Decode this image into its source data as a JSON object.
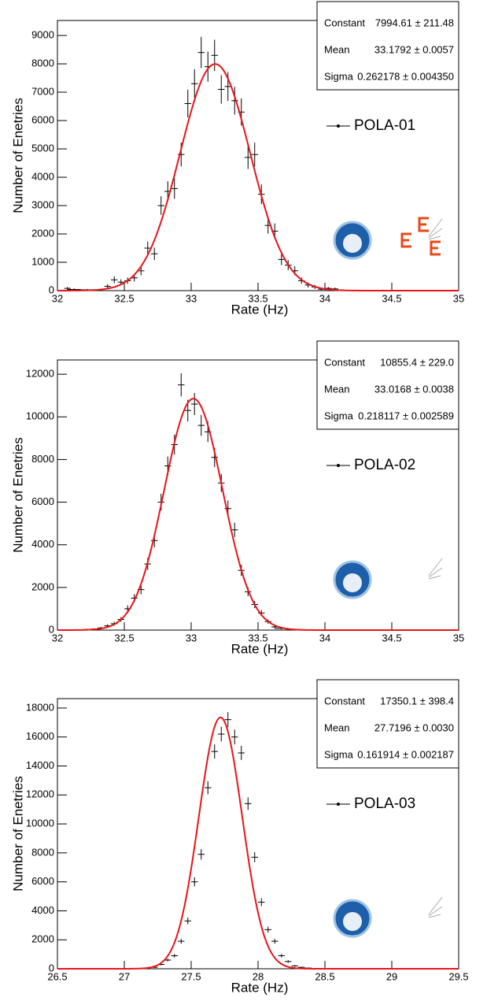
{
  "chart_data": [
    {
      "type": "scatter",
      "x_label": "Rate (Hz)",
      "y_label": "Number of Enetries",
      "xlim": [
        32,
        35
      ],
      "xticks": [
        32,
        32.5,
        33,
        33.5,
        34,
        34.5,
        35
      ],
      "ylim": [
        0,
        9530
      ],
      "yticks": [
        0,
        1000,
        2000,
        3000,
        4000,
        5000,
        6000,
        7000,
        8000,
        9000
      ],
      "series": [
        {
          "name": "POLA-01",
          "color": "#000000",
          "x": [
            32.075,
            32.125,
            32.225,
            32.375,
            32.425,
            32.475,
            32.525,
            32.575,
            32.625,
            32.675,
            32.725,
            32.775,
            32.825,
            32.875,
            32.925,
            32.975,
            33.025,
            33.075,
            33.125,
            33.175,
            33.225,
            33.275,
            33.325,
            33.375,
            33.425,
            33.475,
            33.525,
            33.575,
            33.625,
            33.675,
            33.725,
            33.775,
            33.825,
            33.875,
            33.925,
            33.975,
            34.025,
            34.075,
            34.125
          ],
          "values": [
            80,
            40,
            30,
            150,
            380,
            300,
            350,
            450,
            700,
            1500,
            1300,
            3000,
            3500,
            3600,
            4800,
            6600,
            7300,
            8400,
            7900,
            8300,
            7100,
            7200,
            6700,
            6300,
            4700,
            4800,
            3400,
            2300,
            2100,
            1100,
            900,
            700,
            350,
            200,
            130,
            50,
            80,
            60,
            20
          ],
          "errors": [
            50,
            40,
            30,
            80,
            120,
            100,
            110,
            130,
            160,
            230,
            220,
            330,
            360,
            360,
            420,
            490,
            510,
            550,
            530,
            550,
            500,
            510,
            490,
            480,
            410,
            420,
            350,
            290,
            270,
            200,
            180,
            160,
            110,
            90,
            70,
            40,
            50,
            50,
            30
          ]
        }
      ],
      "fit_color": "#e8141a",
      "stats": [
        {
          "name": "Constant",
          "label": "7994.61 ± 211.48",
          "value": 7994.61
        },
        {
          "name": "Mean",
          "label": "33.1792 ± 0.0057",
          "value": 33.1792
        },
        {
          "name": "Sigma",
          "label": "0.262178 ± 0.004350",
          "value": 0.262178
        }
      ]
    },
    {
      "type": "scatter",
      "x_label": "Rate (Hz)",
      "y_label": "Number of Enetries",
      "xlim": [
        32,
        35
      ],
      "xticks": [
        32,
        32.5,
        33,
        33.5,
        34,
        34.5,
        35
      ],
      "ylim": [
        0,
        12670
      ],
      "yticks": [
        0,
        2000,
        4000,
        6000,
        8000,
        10000,
        12000
      ],
      "series": [
        {
          "name": "POLA-02",
          "color": "#000000",
          "x": [
            32.225,
            32.275,
            32.325,
            32.375,
            32.425,
            32.475,
            32.525,
            32.575,
            32.625,
            32.675,
            32.725,
            32.775,
            32.825,
            32.875,
            32.925,
            32.975,
            33.025,
            33.075,
            33.125,
            33.175,
            33.225,
            33.275,
            33.325,
            33.375,
            33.425,
            33.475,
            33.525,
            33.575,
            33.625,
            33.675,
            33.775,
            33.825
          ],
          "values": [
            30,
            50,
            100,
            200,
            300,
            500,
            1000,
            1500,
            1900,
            3100,
            4200,
            6000,
            7700,
            8700,
            11500,
            10300,
            10600,
            9600,
            9300,
            8100,
            6900,
            5700,
            4700,
            2800,
            1800,
            1200,
            800,
            400,
            150,
            80,
            30,
            20
          ],
          "errors": [
            30,
            35,
            50,
            70,
            90,
            110,
            160,
            190,
            220,
            280,
            320,
            390,
            440,
            470,
            540,
            510,
            520,
            490,
            480,
            450,
            420,
            380,
            340,
            260,
            210,
            170,
            140,
            100,
            60,
            45,
            30,
            20
          ]
        }
      ],
      "fit_color": "#e8141a",
      "stats": [
        {
          "name": "Constant",
          "label": "10855.4 ± 229.0",
          "value": 10855.4
        },
        {
          "name": "Mean",
          "label": "33.0168 ± 0.0038",
          "value": 33.0168
        },
        {
          "name": "Sigma",
          "label": "0.218117 ± 0.002589",
          "value": 0.218117
        }
      ]
    },
    {
      "type": "scatter",
      "x_label": "Rate (Hz)",
      "y_label": "Number of Enetries",
      "xlim": [
        26.5,
        29.5
      ],
      "xticks": [
        26.5,
        27,
        27.5,
        28,
        28.5,
        29,
        29.5
      ],
      "ylim": [
        0,
        18650
      ],
      "yticks": [
        0,
        2000,
        4000,
        6000,
        8000,
        10000,
        12000,
        14000,
        16000,
        18000
      ],
      "series": [
        {
          "name": "POLA-03",
          "color": "#000000",
          "x": [
            27.225,
            27.275,
            27.325,
            27.375,
            27.425,
            27.475,
            27.525,
            27.575,
            27.625,
            27.675,
            27.725,
            27.775,
            27.825,
            27.875,
            27.925,
            27.975,
            28.025,
            28.075,
            28.125,
            28.175,
            28.225,
            28.275,
            28.325,
            28.375
          ],
          "values": [
            100,
            300,
            600,
            900,
            1900,
            3300,
            6000,
            7900,
            12500,
            15000,
            16200,
            17200,
            16000,
            14900,
            11400,
            7700,
            4600,
            2700,
            1900,
            900,
            500,
            200,
            100,
            50
          ],
          "errors": [
            40,
            70,
            100,
            120,
            170,
            230,
            310,
            360,
            450,
            490,
            510,
            520,
            510,
            490,
            430,
            350,
            270,
            210,
            170,
            120,
            90,
            60,
            40,
            30
          ]
        }
      ],
      "fit_color": "#e8141a",
      "stats": [
        {
          "name": "Constant",
          "label": "17350.1 ± 398.4",
          "value": 17350.1
        },
        {
          "name": "Mean",
          "label": "27.7196 ± 0.0030",
          "value": 27.7196
        },
        {
          "name": "Sigma",
          "label": "0.161914 ± 0.002187",
          "value": 0.161914
        }
      ]
    }
  ]
}
